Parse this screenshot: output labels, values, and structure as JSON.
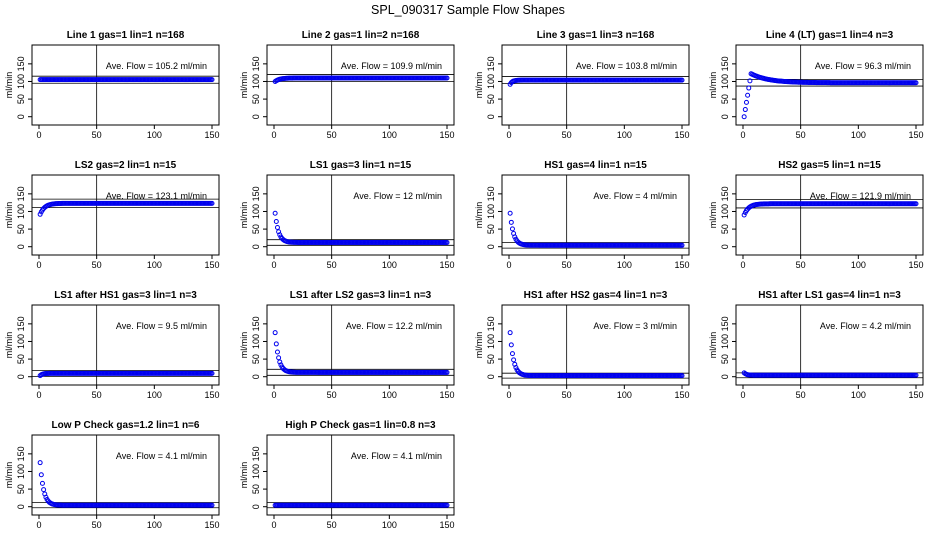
{
  "title": "SPL_090317  Sample Flow Shapes",
  "colors": {
    "points": "#0000ee",
    "axis": "#000000",
    "background": "#ffffff"
  },
  "chart_data": [
    {
      "type": "scatter",
      "title": "Line 1 gas=1 lin=1 n=168",
      "ylabel": "ml/min",
      "annotation": "Ave. Flow =  105.2  ml/min",
      "avg": 105.2,
      "band": [
        95,
        115
      ],
      "xlim": [
        0,
        150
      ],
      "ylim": [
        -15,
        195
      ],
      "xticks": [
        0,
        50,
        100,
        150
      ],
      "yticks": [
        0,
        50,
        100,
        150
      ],
      "vline": 50,
      "shape": {
        "kind": "flat",
        "level": 105.2
      }
    },
    {
      "type": "scatter",
      "title": "Line 2 gas=1 lin=2 n=168",
      "ylabel": "ml/min",
      "annotation": "Ave. Flow =  109.9  ml/min",
      "avg": 109.9,
      "band": [
        100,
        120
      ],
      "xlim": [
        0,
        150
      ],
      "ylim": [
        -15,
        195
      ],
      "xticks": [
        0,
        50,
        100,
        150
      ],
      "yticks": [
        0,
        50,
        100,
        150
      ],
      "vline": 50,
      "shape": {
        "kind": "rise",
        "start": 100,
        "level": 109.9,
        "tau": 4
      }
    },
    {
      "type": "scatter",
      "title": "Line 3 gas=1 lin=3 n=168",
      "ylabel": "ml/min",
      "annotation": "Ave. Flow =  103.8  ml/min",
      "avg": 103.8,
      "band": [
        94,
        114
      ],
      "xlim": [
        0,
        150
      ],
      "ylim": [
        -15,
        195
      ],
      "xticks": [
        0,
        50,
        100,
        150
      ],
      "yticks": [
        0,
        50,
        100,
        150
      ],
      "vline": 50,
      "shape": {
        "kind": "rise",
        "start": 92,
        "level": 103.8,
        "tau": 2
      }
    },
    {
      "type": "scatter",
      "title": "Line 4 (LT) gas=1 lin=4 n=3",
      "ylabel": "ml/min",
      "annotation": "Ave. Flow =  96.3  ml/min",
      "avg": 96.3,
      "band": [
        87,
        106
      ],
      "xlim": [
        0,
        150
      ],
      "ylim": [
        -15,
        195
      ],
      "xticks": [
        0,
        50,
        100,
        150
      ],
      "yticks": [
        0,
        50,
        100,
        150
      ],
      "vline": 50,
      "shape": {
        "kind": "overshoot",
        "start": 0,
        "peak": 122,
        "peakAt": 7,
        "level": 96.3,
        "tau": 15
      }
    },
    {
      "type": "scatter",
      "title": "LS2 gas=2 lin=1 n=15",
      "ylabel": "ml/min",
      "annotation": "Ave. Flow =  123.1  ml/min",
      "avg": 123.1,
      "band": [
        111,
        135
      ],
      "xlim": [
        0,
        150
      ],
      "ylim": [
        -15,
        195
      ],
      "xticks": [
        0,
        50,
        100,
        150
      ],
      "yticks": [
        0,
        50,
        100,
        150
      ],
      "vline": 50,
      "shape": {
        "kind": "rise",
        "start": 92,
        "level": 123.1,
        "tau": 4
      }
    },
    {
      "type": "scatter",
      "title": "LS1 gas=3 lin=1 n=15",
      "ylabel": "ml/min",
      "annotation": "Ave. Flow =  12  ml/min",
      "avg": 12,
      "band": [
        4,
        20
      ],
      "xlim": [
        0,
        150
      ],
      "ylim": [
        -15,
        195
      ],
      "xticks": [
        0,
        50,
        100,
        150
      ],
      "yticks": [
        0,
        50,
        100,
        150
      ],
      "vline": 50,
      "shape": {
        "kind": "decay",
        "start": 95,
        "level": 12,
        "tau": 3
      }
    },
    {
      "type": "scatter",
      "title": "HS1 gas=4 lin=1 n=15",
      "ylabel": "ml/min",
      "annotation": "Ave. Flow =  4  ml/min",
      "avg": 4,
      "band": [
        -4,
        12
      ],
      "xlim": [
        0,
        150
      ],
      "ylim": [
        -15,
        195
      ],
      "xticks": [
        0,
        50,
        100,
        150
      ],
      "yticks": [
        0,
        50,
        100,
        150
      ],
      "vline": 50,
      "shape": {
        "kind": "decay",
        "start": 95,
        "level": 4,
        "tau": 3
      }
    },
    {
      "type": "scatter",
      "title": "HS2 gas=5 lin=1 n=15",
      "ylabel": "ml/min",
      "annotation": "Ave. Flow =  121.9  ml/min",
      "avg": 121.9,
      "band": [
        110,
        134
      ],
      "xlim": [
        0,
        150
      ],
      "ylim": [
        -15,
        195
      ],
      "xticks": [
        0,
        50,
        100,
        150
      ],
      "yticks": [
        0,
        50,
        100,
        150
      ],
      "vline": 50,
      "shape": {
        "kind": "rise",
        "start": 90,
        "level": 121.9,
        "tau": 4
      }
    },
    {
      "type": "scatter",
      "title": "LS1 after HS1 gas=3 lin=1 n=3",
      "ylabel": "ml/min",
      "annotation": "Ave. Flow =  9.5  ml/min",
      "avg": 9.5,
      "band": [
        1,
        18
      ],
      "xlim": [
        0,
        150
      ],
      "ylim": [
        -15,
        195
      ],
      "xticks": [
        0,
        50,
        100,
        150
      ],
      "yticks": [
        0,
        50,
        100,
        150
      ],
      "vline": 50,
      "shape": {
        "kind": "rise",
        "start": 3,
        "level": 9.5,
        "tau": 2
      }
    },
    {
      "type": "scatter",
      "title": "LS1 after LS2 gas=3 lin=1 n=3",
      "ylabel": "ml/min",
      "annotation": "Ave. Flow =  12.2  ml/min",
      "avg": 12.2,
      "band": [
        4,
        21
      ],
      "xlim": [
        0,
        150
      ],
      "ylim": [
        -15,
        195
      ],
      "xticks": [
        0,
        50,
        100,
        150
      ],
      "yticks": [
        0,
        50,
        100,
        150
      ],
      "vline": 50,
      "shape": {
        "kind": "decay",
        "start": 125,
        "level": 12.2,
        "tau": 3
      }
    },
    {
      "type": "scatter",
      "title": "HS1 after HS2 gas=4 lin=1 n=3",
      "ylabel": "ml/min",
      "annotation": "Ave. Flow =  3  ml/min",
      "avg": 3,
      "band": [
        -4,
        10
      ],
      "xlim": [
        0,
        150
      ],
      "ylim": [
        -15,
        195
      ],
      "xticks": [
        0,
        50,
        100,
        150
      ],
      "yticks": [
        0,
        50,
        100,
        150
      ],
      "vline": 50,
      "shape": {
        "kind": "decay",
        "start": 125,
        "level": 3,
        "tau": 3
      }
    },
    {
      "type": "scatter",
      "title": "HS1 after LS1 gas=4 lin=1 n=3",
      "ylabel": "ml/min",
      "annotation": "Ave. Flow =  4.2  ml/min",
      "avg": 4.2,
      "band": [
        -3,
        11
      ],
      "xlim": [
        0,
        150
      ],
      "ylim": [
        -15,
        195
      ],
      "xticks": [
        0,
        50,
        100,
        150
      ],
      "yticks": [
        0,
        50,
        100,
        150
      ],
      "vline": 50,
      "shape": {
        "kind": "decay",
        "start": 11,
        "level": 4.2,
        "tau": 2
      }
    },
    {
      "type": "scatter",
      "title": "Low P Check gas=1.2 lin=1 n=6",
      "ylabel": "ml/min",
      "annotation": "Ave. Flow =  4.1  ml/min",
      "avg": 4.1,
      "band": [
        -3,
        12
      ],
      "xlim": [
        0,
        150
      ],
      "ylim": [
        -15,
        195
      ],
      "xticks": [
        0,
        50,
        100,
        150
      ],
      "yticks": [
        0,
        50,
        100,
        150
      ],
      "vline": 50,
      "shape": {
        "kind": "decay",
        "start": 125,
        "level": 4.1,
        "tau": 3
      }
    },
    {
      "type": "scatter",
      "title": "High P Check gas=1 lin=0.8 n=3",
      "ylabel": "ml/min",
      "annotation": "Ave. Flow =  4.1  ml/min",
      "avg": 4.1,
      "band": [
        -3,
        12
      ],
      "xlim": [
        0,
        150
      ],
      "ylim": [
        -15,
        195
      ],
      "xticks": [
        0,
        50,
        100,
        150
      ],
      "yticks": [
        0,
        50,
        100,
        150
      ],
      "vline": 50,
      "shape": {
        "kind": "flat",
        "level": 4.1
      }
    }
  ]
}
